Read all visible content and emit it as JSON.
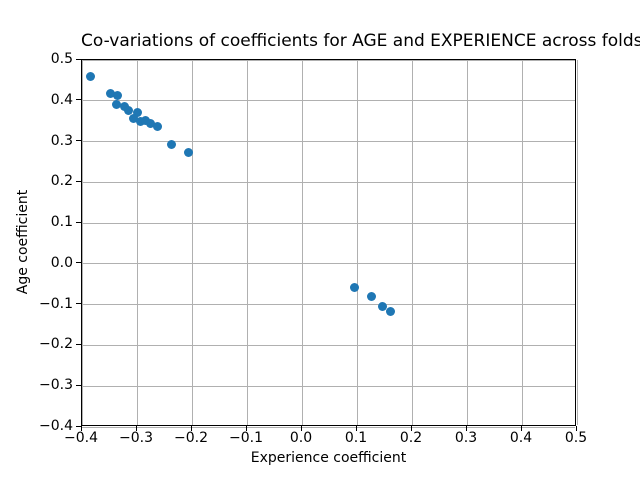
{
  "chart_data": {
    "type": "scatter",
    "title": "Co-variations of coefficients for AGE and EXPERIENCE across folds",
    "xlabel": "Experience coefficient",
    "ylabel": "Age coefficient",
    "xlim": [
      -0.4,
      0.5
    ],
    "ylim": [
      -0.4,
      0.5
    ],
    "xticks": [
      -0.4,
      -0.3,
      -0.2,
      -0.1,
      0.0,
      0.1,
      0.2,
      0.3,
      0.4,
      0.5
    ],
    "xtick_labels": [
      "−0.4",
      "−0.3",
      "−0.2",
      "−0.1",
      "0.0",
      "0.1",
      "0.2",
      "0.3",
      "0.4",
      "0.5"
    ],
    "yticks": [
      0.5,
      0.4,
      0.3,
      0.2,
      0.1,
      0.0,
      -0.1,
      -0.2,
      -0.3,
      -0.4
    ],
    "ytick_labels": [
      "0.5",
      "0.4",
      "0.3",
      "0.2",
      "0.1",
      "0.0",
      "−0.1",
      "−0.2",
      "−0.3",
      "−0.4"
    ],
    "grid": true,
    "legend_position": "none",
    "marker_shape": "circle",
    "marker_color": "#1f77b4",
    "grid_color": "#b0b0b0",
    "spine_color": "#000000",
    "background_color": "#ffffff",
    "points": [
      {
        "x": -0.385,
        "y": 0.459
      },
      {
        "x": -0.349,
        "y": 0.417
      },
      {
        "x": -0.335,
        "y": 0.412
      },
      {
        "x": -0.338,
        "y": 0.391
      },
      {
        "x": -0.323,
        "y": 0.387
      },
      {
        "x": -0.315,
        "y": 0.377
      },
      {
        "x": -0.3,
        "y": 0.371
      },
      {
        "x": -0.306,
        "y": 0.357
      },
      {
        "x": -0.294,
        "y": 0.35
      },
      {
        "x": -0.284,
        "y": 0.352
      },
      {
        "x": -0.275,
        "y": 0.345
      },
      {
        "x": -0.263,
        "y": 0.338
      },
      {
        "x": -0.238,
        "y": 0.294
      },
      {
        "x": -0.207,
        "y": 0.272
      },
      {
        "x": 0.096,
        "y": -0.057
      },
      {
        "x": 0.127,
        "y": -0.08
      },
      {
        "x": 0.147,
        "y": -0.105
      },
      {
        "x": 0.161,
        "y": -0.116
      }
    ]
  }
}
